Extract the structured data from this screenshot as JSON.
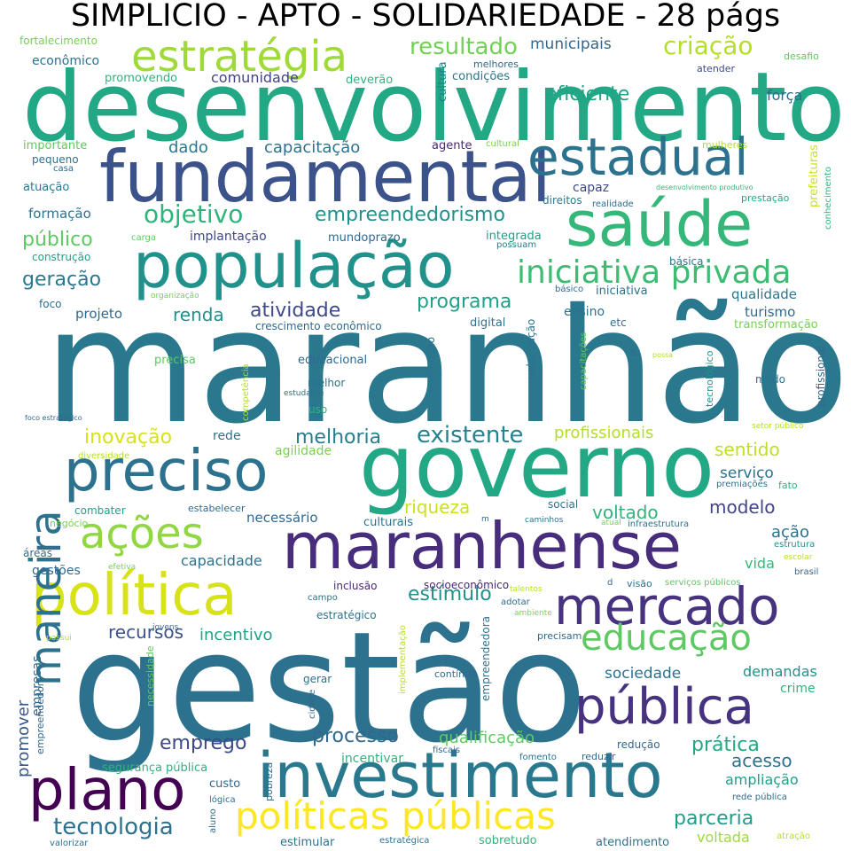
{
  "title": "SIMPLICIO - APTO - SOLIDARIEDADE - 28 págs",
  "words": [
    {
      "text": "maranhão",
      "color": "#2a788e"
    },
    {
      "text": "gestão",
      "color": "#2c728e"
    },
    {
      "text": "desenvolvimento",
      "color": "#22a884"
    },
    {
      "text": "governo",
      "color": "#22a884"
    },
    {
      "text": "fundamental",
      "color": "#3b528b"
    },
    {
      "text": "população",
      "color": "#21918c"
    },
    {
      "text": "maranhense",
      "color": "#472d7b"
    },
    {
      "text": "preciso",
      "color": "#2c728e"
    },
    {
      "text": "saúde",
      "color": "#35b779"
    },
    {
      "text": "investimento",
      "color": "#2a788e"
    },
    {
      "text": "política",
      "color": "#d8e219"
    },
    {
      "text": "mercado",
      "color": "#46327e"
    },
    {
      "text": "pública",
      "color": "#46327e"
    },
    {
      "text": "estadual",
      "color": "#2c728e"
    },
    {
      "text": "plano",
      "color": "#440154"
    },
    {
      "text": "estratégia",
      "color": "#a0da39"
    },
    {
      "text": "ações",
      "color": "#90d743"
    },
    {
      "text": "maneira",
      "color": "#2c728e"
    },
    {
      "text": "educação",
      "color": "#5ec962"
    },
    {
      "text": "políticas públicas",
      "color": "#fde725"
    },
    {
      "text": "iniciativa privada",
      "color": "#3dbc74"
    },
    {
      "text": "existente",
      "color": "#26828e"
    },
    {
      "text": "eficiente",
      "color": "#20a386"
    },
    {
      "text": "resultado",
      "color": "#73d056"
    },
    {
      "text": "criação",
      "color": "#b5de2b"
    },
    {
      "text": "objetivo",
      "color": "#2fb47c"
    },
    {
      "text": "empreendedorismo",
      "color": "#21918c"
    },
    {
      "text": "atividade",
      "color": "#3e4989"
    },
    {
      "text": "programa",
      "color": "#1fa188"
    },
    {
      "text": "inovação",
      "color": "#d8e219"
    },
    {
      "text": "melhoria",
      "color": "#277f8e"
    },
    {
      "text": "processo",
      "color": "#31688e"
    },
    {
      "text": "tecnologia",
      "color": "#2c728e"
    },
    {
      "text": "emprego",
      "color": "#3e4989"
    },
    {
      "text": "parceria",
      "color": "#1f9e89"
    },
    {
      "text": "prática",
      "color": "#22a884"
    },
    {
      "text": "estímulo",
      "color": "#21918c"
    },
    {
      "text": "riqueza",
      "color": "#cae11f"
    },
    {
      "text": "voltado",
      "color": "#2fb47c"
    },
    {
      "text": "modelo",
      "color": "#414487"
    },
    {
      "text": "sentido",
      "color": "#bddf26"
    },
    {
      "text": "profissionais",
      "color": "#b5de2b"
    },
    {
      "text": "geração",
      "color": "#2a788e"
    },
    {
      "text": "público",
      "color": "#5ec962"
    },
    {
      "text": "renda",
      "color": "#21918c"
    },
    {
      "text": "capacitação",
      "color": "#2c728e"
    },
    {
      "text": "dado",
      "color": "#2a788e"
    },
    {
      "text": "recursos",
      "color": "#3b528b"
    },
    {
      "text": "incentivo",
      "color": "#20a386"
    },
    {
      "text": "sociedade",
      "color": "#2d708e"
    },
    {
      "text": "acesso",
      "color": "#2c728e"
    },
    {
      "text": "qualificação",
      "color": "#5ec962"
    },
    {
      "text": "ampliação",
      "color": "#1fa188"
    },
    {
      "text": "demandas",
      "color": "#21918c"
    },
    {
      "text": "promover",
      "color": "#38588c"
    },
    {
      "text": "capacidade",
      "color": "#2c728e"
    },
    {
      "text": "serviço",
      "color": "#2c728e"
    },
    {
      "text": "ação",
      "color": "#2c728e"
    },
    {
      "text": "vida",
      "color": "#35b779"
    },
    {
      "text": "voltada",
      "color": "#a0da39"
    },
    {
      "text": "força",
      "color": "#31688e"
    },
    {
      "text": "municipais",
      "color": "#31688e"
    },
    {
      "text": "comunidade",
      "color": "#414487"
    },
    {
      "text": "econômico",
      "color": "#2c728e"
    },
    {
      "text": "fortalecimento",
      "color": "#75d054"
    },
    {
      "text": "promovendo",
      "color": "#2fb47c"
    },
    {
      "text": "deverão",
      "color": "#2fb47c"
    },
    {
      "text": "cultura",
      "color": "#2a788e"
    },
    {
      "text": "melhores",
      "color": "#31688e"
    },
    {
      "text": "condições",
      "color": "#2c728e"
    },
    {
      "text": "desafio",
      "color": "#5ec962"
    },
    {
      "text": "atender",
      "color": "#3e4989"
    },
    {
      "text": "importante",
      "color": "#5ec962"
    },
    {
      "text": "pequeno",
      "color": "#2c728e"
    },
    {
      "text": "casa",
      "color": "#31688e"
    },
    {
      "text": "atuação",
      "color": "#2a788e"
    },
    {
      "text": "formação",
      "color": "#2c728e"
    },
    {
      "text": "construção",
      "color": "#1fa188"
    },
    {
      "text": "implantação",
      "color": "#3e4989"
    },
    {
      "text": "agente",
      "color": "#482878"
    },
    {
      "text": "cultural",
      "color": "#7ad151"
    },
    {
      "text": "capaz",
      "color": "#3e4989"
    },
    {
      "text": "mulheres",
      "color": "#b5de2b"
    },
    {
      "text": "desenvolvimento produtivo",
      "color": "#35b779"
    },
    {
      "text": "conhecimento",
      "color": "#2fb47c"
    },
    {
      "text": "prestação",
      "color": "#22a884"
    },
    {
      "text": "direitos",
      "color": "#2a788e"
    },
    {
      "text": "realidade",
      "color": "#31688e"
    },
    {
      "text": "prefeituras",
      "color": "#cae11f"
    },
    {
      "text": "mundoprazo",
      "color": "#31688e"
    },
    {
      "text": "integrada",
      "color": "#1f9e89"
    },
    {
      "text": "possuam",
      "color": "#2a788e"
    },
    {
      "text": "carga",
      "color": "#5ec962"
    },
    {
      "text": "básica",
      "color": "#2c728e"
    },
    {
      "text": "foco",
      "color": "#2c728e"
    },
    {
      "text": "organização",
      "color": "#7ad151"
    },
    {
      "text": "básico",
      "color": "#31688e"
    },
    {
      "text": "iniciativa",
      "color": "#2c728e"
    },
    {
      "text": "qualidade",
      "color": "#2a788e"
    },
    {
      "text": "projeto",
      "color": "#31688e"
    },
    {
      "text": "crescimento econômico",
      "color": "#31688e"
    },
    {
      "text": "digital",
      "color": "#2c728e"
    },
    {
      "text": "ensino",
      "color": "#2c728e"
    },
    {
      "text": "etc",
      "color": "#2c728e"
    },
    {
      "text": "turismo",
      "color": "#31688e"
    },
    {
      "text": "transformação",
      "color": "#7ad151"
    },
    {
      "text": "precisa",
      "color": "#5ec962"
    },
    {
      "text": "educacional",
      "color": "#31688e"
    },
    {
      "text": "competência",
      "color": "#b5de2b"
    },
    {
      "text": "melhor",
      "color": "#2c728e"
    },
    {
      "text": "estudante",
      "color": "#2c728e"
    },
    {
      "text": "uso",
      "color": "#2fb47c"
    },
    {
      "text": "prevenção",
      "color": "#2c728e"
    },
    {
      "text": "valorização",
      "color": "#2c728e"
    },
    {
      "text": "capacitações",
      "color": "#5ec962"
    },
    {
      "text": "s",
      "color": "#31688e"
    },
    {
      "text": "possa",
      "color": "#b5de2b"
    },
    {
      "text": "modo",
      "color": "#2c728e"
    },
    {
      "text": "tecnológico",
      "color": "#21918c"
    },
    {
      "text": "profissional",
      "color": "#31688e"
    },
    {
      "text": "foco estratégico",
      "color": "#31688e"
    },
    {
      "text": "setor público",
      "color": "#b5de2b"
    },
    {
      "text": "diversidade",
      "color": "#b5de2b"
    },
    {
      "text": "agilidade",
      "color": "#7ad151"
    },
    {
      "text": "rede",
      "color": "#2c728e"
    },
    {
      "text": "premiações",
      "color": "#2c728e"
    },
    {
      "text": "fato",
      "color": "#2fb47c"
    },
    {
      "text": "combater",
      "color": "#1fa188"
    },
    {
      "text": "estabelecer",
      "color": "#31688e"
    },
    {
      "text": "necessário",
      "color": "#31688e"
    },
    {
      "text": "social",
      "color": "#2c728e"
    },
    {
      "text": "negócio",
      "color": "#7ad151"
    },
    {
      "text": "culturais",
      "color": "#2c728e"
    },
    {
      "text": "m",
      "color": "#31688e"
    },
    {
      "text": "caminhos",
      "color": "#2c728e"
    },
    {
      "text": "atual",
      "color": "#7ad151"
    },
    {
      "text": "infraestrutura",
      "color": "#2c728e"
    },
    {
      "text": "estrutura",
      "color": "#21918c"
    },
    {
      "text": "áreas",
      "color": "#2c728e"
    },
    {
      "text": "efetiva",
      "color": "#7ad151"
    },
    {
      "text": "escolar",
      "color": "#b5de2b"
    },
    {
      "text": "gestões",
      "color": "#31688e"
    },
    {
      "text": "brasil",
      "color": "#31688e"
    },
    {
      "text": "inclusão",
      "color": "#482878"
    },
    {
      "text": "socioeconômico",
      "color": "#482878"
    },
    {
      "text": "visão",
      "color": "#2c728e"
    },
    {
      "text": "serviços públicos",
      "color": "#5ec962"
    },
    {
      "text": "d",
      "color": "#31688e"
    },
    {
      "text": "campo",
      "color": "#2c728e"
    },
    {
      "text": "talentos",
      "color": "#b5de2b"
    },
    {
      "text": "adotar",
      "color": "#31688e"
    },
    {
      "text": "ambiente",
      "color": "#7ad151"
    },
    {
      "text": "estratégico",
      "color": "#2c728e"
    },
    {
      "text": "jovens",
      "color": "#2c728e"
    },
    {
      "text": "possui",
      "color": "#b5de2b"
    },
    {
      "text": "empreendedora",
      "color": "#2c728e"
    },
    {
      "text": "precisam",
      "color": "#31688e"
    },
    {
      "text": "implementação",
      "color": "#b5de2b"
    },
    {
      "text": "necessidade",
      "color": "#5ec962"
    },
    {
      "text": "empresas",
      "color": "#31688e"
    },
    {
      "text": "empreendedor",
      "color": "#31688e"
    },
    {
      "text": "contínua",
      "color": "#31688e"
    },
    {
      "text": "gerar",
      "color": "#2c728e"
    },
    {
      "text": "sociais",
      "color": "#2c728e"
    },
    {
      "text": "cidade",
      "color": "#31688e"
    },
    {
      "text": "crime",
      "color": "#2fb47c"
    },
    {
      "text": "segurança pública",
      "color": "#2fb47c"
    },
    {
      "text": "incentivar",
      "color": "#2fb47c"
    },
    {
      "text": "fiscais",
      "color": "#31688e"
    },
    {
      "text": "fomento",
      "color": "#2c728e"
    },
    {
      "text": "redução",
      "color": "#31688e"
    },
    {
      "text": "reduzir",
      "color": "#31688e"
    },
    {
      "text": "custo",
      "color": "#31688e"
    },
    {
      "text": "pobreza",
      "color": "#31688e"
    },
    {
      "text": "lógica",
      "color": "#2c728e"
    },
    {
      "text": "rede pública",
      "color": "#31688e"
    },
    {
      "text": "estimular",
      "color": "#2c728e"
    },
    {
      "text": "estratégica",
      "color": "#2c728e"
    },
    {
      "text": "sobretudo",
      "color": "#2fb47c"
    },
    {
      "text": "atendimento",
      "color": "#2c728e"
    },
    {
      "text": "atração",
      "color": "#b5de2b"
    },
    {
      "text": "aluno",
      "color": "#31688e"
    },
    {
      "text": "valorizar",
      "color": "#2c728e"
    }
  ]
}
